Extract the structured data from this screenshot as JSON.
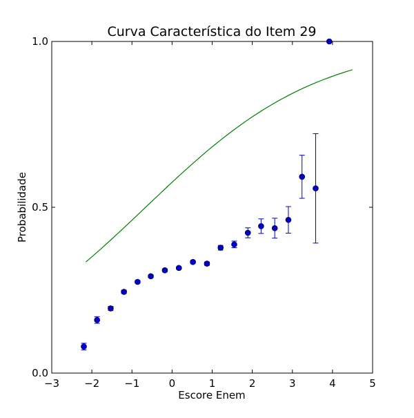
{
  "chart_data": {
    "type": "scatter",
    "title": "Curva Característica do Item 29",
    "xlabel": "Escore Enem",
    "ylabel": "Probabilidade",
    "xlim": [
      -3,
      5
    ],
    "ylim": [
      0.0,
      1.0
    ],
    "xticks": [
      -3,
      -2,
      -1,
      0,
      1,
      2,
      3,
      4,
      5
    ],
    "xtick_labels": [
      "−3",
      "−2",
      "−1",
      "0",
      "1",
      "2",
      "3",
      "4",
      "5"
    ],
    "yticks": [
      0.0,
      0.5,
      1.0
    ],
    "ytick_labels": [
      "0.0",
      "0.5",
      "1.0"
    ],
    "grid": false,
    "series": [
      {
        "kind": "points_with_errorbars",
        "color": "#0000cc",
        "points": [
          {
            "x": -2.2,
            "y": 0.08,
            "err": 0.01
          },
          {
            "x": -1.87,
            "y": 0.16,
            "err": 0.01
          },
          {
            "x": -1.53,
            "y": 0.195,
            "err": 0.006
          },
          {
            "x": -1.2,
            "y": 0.245,
            "err": 0.005
          },
          {
            "x": -0.86,
            "y": 0.275,
            "err": 0.004
          },
          {
            "x": -0.53,
            "y": 0.292,
            "err": 0.004
          },
          {
            "x": -0.18,
            "y": 0.31,
            "err": 0.004
          },
          {
            "x": 0.17,
            "y": 0.317,
            "err": 0.004
          },
          {
            "x": 0.52,
            "y": 0.335,
            "err": 0.004
          },
          {
            "x": 0.87,
            "y": 0.33,
            "err": 0.005
          },
          {
            "x": 1.21,
            "y": 0.378,
            "err": 0.007
          },
          {
            "x": 1.55,
            "y": 0.388,
            "err": 0.01
          },
          {
            "x": 1.89,
            "y": 0.423,
            "err": 0.015
          },
          {
            "x": 2.22,
            "y": 0.443,
            "err": 0.022
          },
          {
            "x": 2.56,
            "y": 0.437,
            "err": 0.03
          },
          {
            "x": 2.9,
            "y": 0.462,
            "err": 0.04
          },
          {
            "x": 3.24,
            "y": 0.592,
            "err": 0.065
          },
          {
            "x": 3.58,
            "y": 0.557,
            "err": 0.165
          },
          {
            "x": 3.92,
            "y": 1.0,
            "err": 0.0
          }
        ]
      },
      {
        "kind": "fitted_curve",
        "color": "#008000",
        "curve": {
          "type": "logistic",
          "a": 0.46,
          "b": -0.66,
          "x_start": -2.15,
          "x_end": 4.5,
          "samples": 60
        }
      }
    ]
  }
}
